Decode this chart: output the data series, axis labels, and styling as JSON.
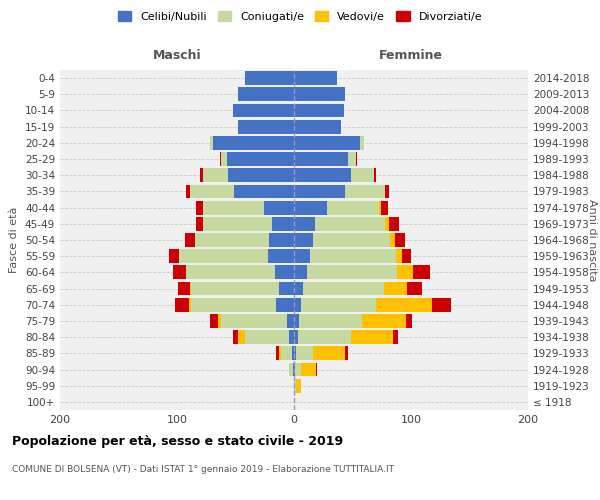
{
  "age_groups": [
    "100+",
    "95-99",
    "90-94",
    "85-89",
    "80-84",
    "75-79",
    "70-74",
    "65-69",
    "60-64",
    "55-59",
    "50-54",
    "45-49",
    "40-44",
    "35-39",
    "30-34",
    "25-29",
    "20-24",
    "15-19",
    "10-14",
    "5-9",
    "0-4"
  ],
  "birth_years": [
    "≤ 1918",
    "1919-1923",
    "1924-1928",
    "1929-1933",
    "1934-1938",
    "1939-1943",
    "1944-1948",
    "1949-1953",
    "1954-1958",
    "1959-1963",
    "1964-1968",
    "1969-1973",
    "1974-1978",
    "1979-1983",
    "1984-1988",
    "1989-1993",
    "1994-1998",
    "1999-2003",
    "2004-2008",
    "2009-2013",
    "2014-2018"
  ],
  "maschi": {
    "celibi": [
      0,
      0,
      1,
      2,
      4,
      6,
      15,
      13,
      16,
      22,
      21,
      19,
      26,
      51,
      56,
      57,
      69,
      48,
      52,
      48,
      42
    ],
    "coniugati": [
      0,
      0,
      3,
      9,
      38,
      56,
      73,
      75,
      76,
      76,
      64,
      59,
      52,
      38,
      22,
      5,
      3,
      0,
      0,
      0,
      0
    ],
    "vedovi": [
      0,
      0,
      0,
      2,
      6,
      3,
      2,
      1,
      0,
      0,
      0,
      0,
      0,
      0,
      0,
      0,
      0,
      0,
      0,
      0,
      0
    ],
    "divorziati": [
      0,
      0,
      0,
      2,
      4,
      7,
      12,
      10,
      11,
      9,
      8,
      6,
      6,
      3,
      2,
      1,
      0,
      0,
      0,
      0,
      0
    ]
  },
  "femmine": {
    "nubili": [
      0,
      0,
      1,
      2,
      3,
      4,
      6,
      8,
      11,
      14,
      16,
      18,
      28,
      44,
      49,
      46,
      56,
      40,
      43,
      44,
      37
    ],
    "coniugate": [
      0,
      2,
      5,
      14,
      46,
      54,
      64,
      69,
      77,
      73,
      66,
      60,
      45,
      34,
      19,
      7,
      4,
      0,
      0,
      0,
      0
    ],
    "vedove": [
      0,
      4,
      13,
      28,
      36,
      38,
      48,
      20,
      14,
      5,
      4,
      3,
      1,
      0,
      0,
      0,
      0,
      0,
      0,
      0,
      0
    ],
    "divorziate": [
      0,
      0,
      1,
      2,
      4,
      5,
      16,
      12,
      14,
      8,
      9,
      9,
      6,
      3,
      2,
      1,
      0,
      0,
      0,
      0,
      0
    ]
  },
  "colors": {
    "celibi": "#4472c4",
    "coniugati": "#c5d9a0",
    "vedovi": "#ffc000",
    "divorziati": "#cc0000"
  },
  "xlim": [
    -200,
    200
  ],
  "xticks": [
    -200,
    -100,
    0,
    100,
    200
  ],
  "xticklabels": [
    "200",
    "100",
    "0",
    "100",
    "200"
  ],
  "title": "Popolazione per età, sesso e stato civile - 2019",
  "subtitle": "COMUNE DI BOLSENA (VT) - Dati ISTAT 1° gennaio 2019 - Elaborazione TUTTITALIA.IT",
  "ylabel_left": "Fasce di età",
  "ylabel_right": "Anni di nascita",
  "label_maschi": "Maschi",
  "label_femmine": "Femmine",
  "legend_labels": [
    "Celibi/Nubili",
    "Coniugati/e",
    "Vedovi/e",
    "Divorziati/e"
  ],
  "bg_color": "#f0f0f0"
}
